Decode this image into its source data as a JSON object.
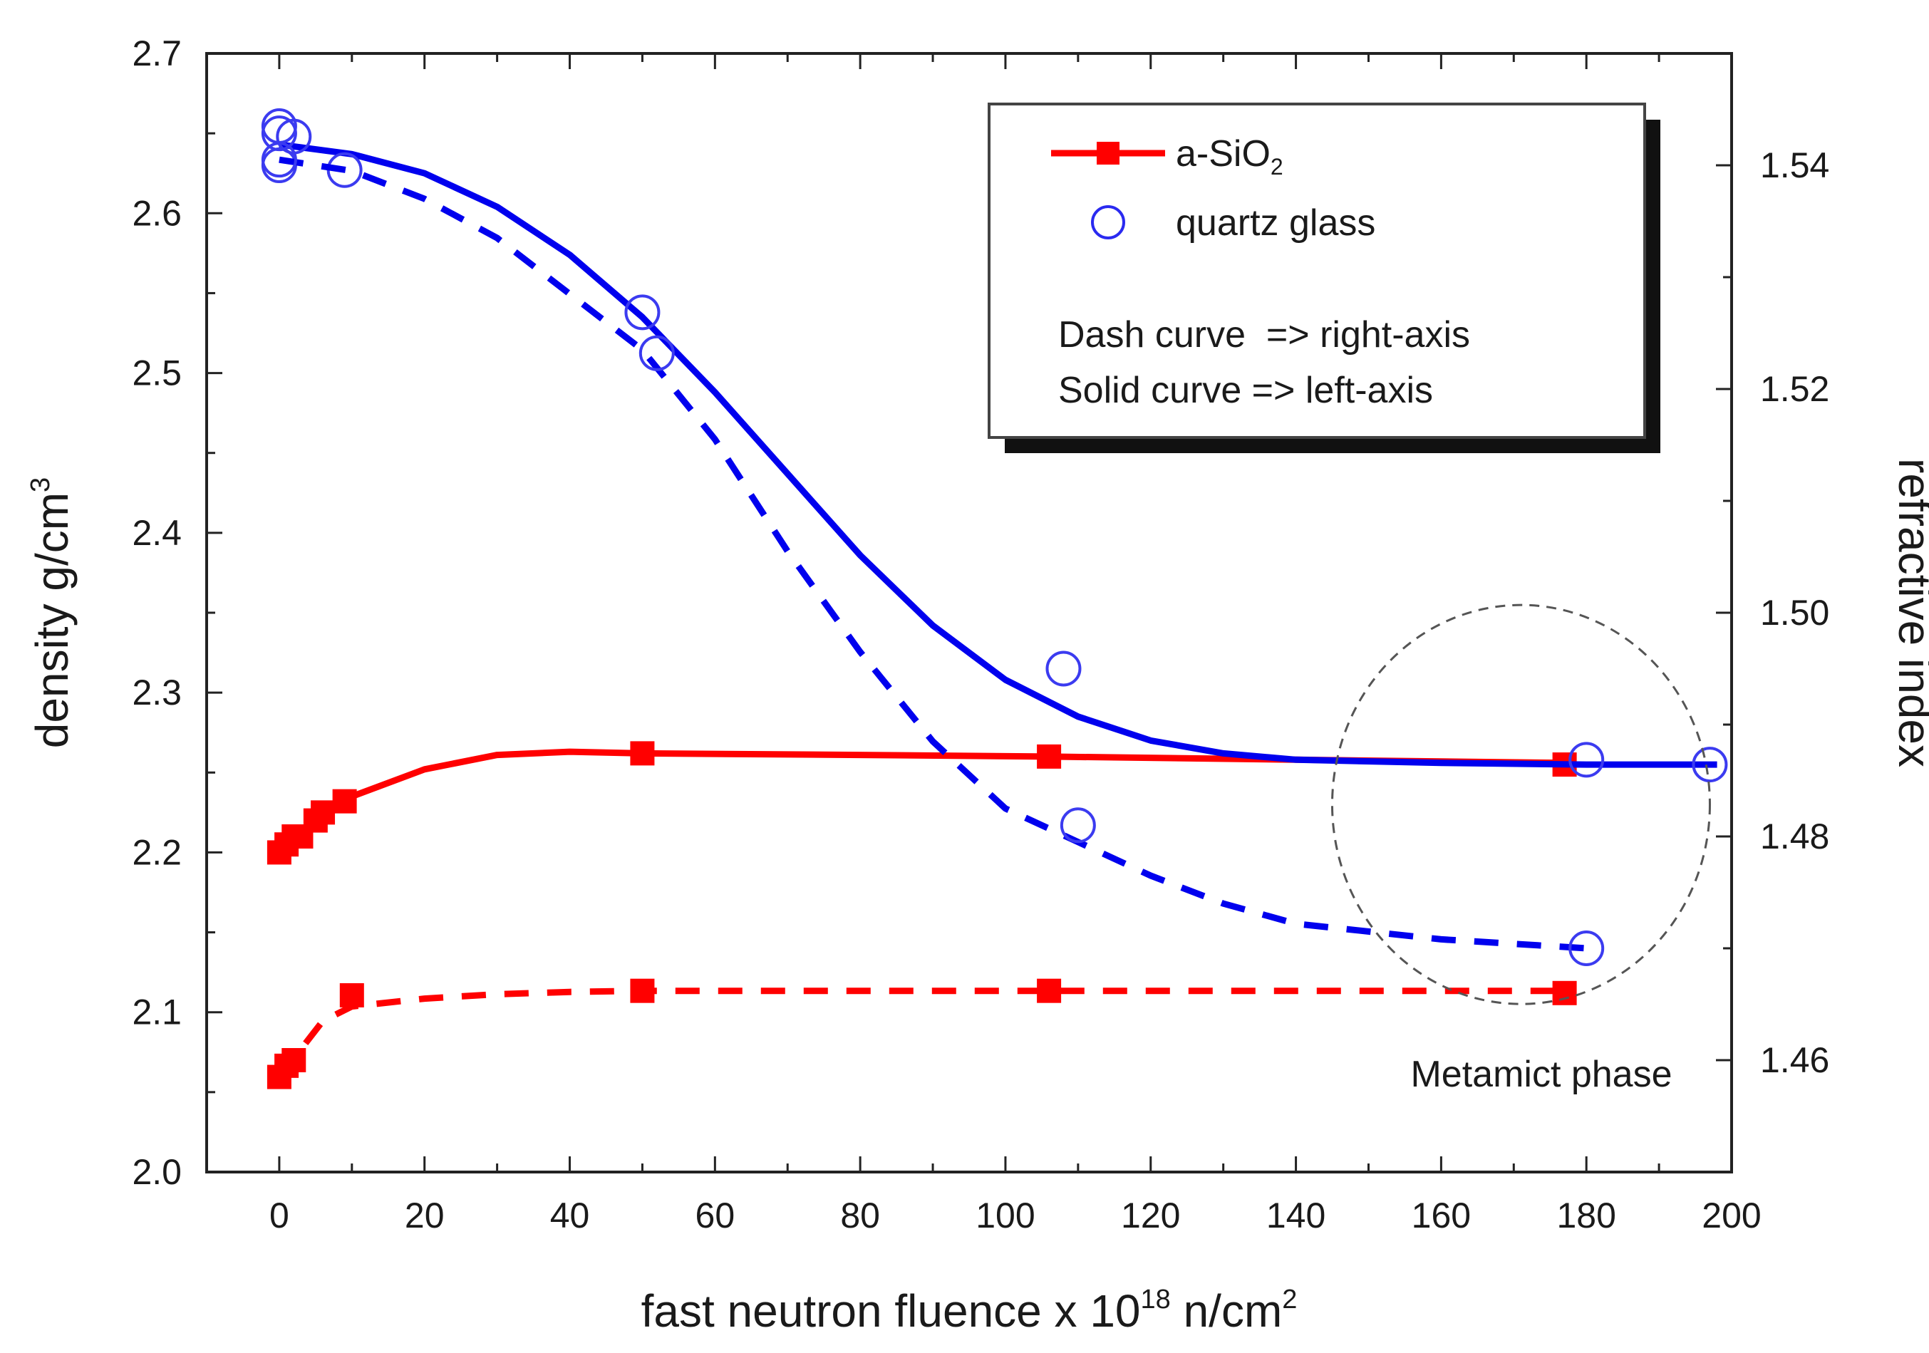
{
  "chart_data": {
    "type": "line",
    "title": "",
    "xlabel": {
      "pre": "fast neutron fluence x 10",
      "sup": "18",
      "mid": " n/cm",
      "sup2": "2"
    },
    "ylabel_left": {
      "pre": "density g/cm",
      "sup": "3"
    },
    "ylabel_right": "refractive index",
    "xlim": [
      -10,
      200
    ],
    "ylim_left": [
      2.0,
      2.7
    ],
    "ylim_right": [
      1.45,
      1.55
    ],
    "x_ticks": [
      {
        "value": 0,
        "label": "0"
      },
      {
        "value": 20,
        "label": "20"
      },
      {
        "value": 40,
        "label": "40"
      },
      {
        "value": 60,
        "label": "60"
      },
      {
        "value": 80,
        "label": "80"
      },
      {
        "value": 100,
        "label": "100"
      },
      {
        "value": 120,
        "label": "120"
      },
      {
        "value": 140,
        "label": "140"
      },
      {
        "value": 160,
        "label": "160"
      },
      {
        "value": 180,
        "label": "180"
      },
      {
        "value": 200,
        "label": "200"
      }
    ],
    "y_ticks_left": [
      {
        "value": 2.0,
        "label": "2.0"
      },
      {
        "value": 2.1,
        "label": "2.1"
      },
      {
        "value": 2.2,
        "label": "2.2"
      },
      {
        "value": 2.3,
        "label": "2.3"
      },
      {
        "value": 2.4,
        "label": "2.4"
      },
      {
        "value": 2.5,
        "label": "2.5"
      },
      {
        "value": 2.6,
        "label": "2.6"
      },
      {
        "value": 2.7,
        "label": "2.7"
      }
    ],
    "y_ticks_right": [
      {
        "value": 1.46,
        "label": "1.46"
      },
      {
        "value": 1.48,
        "label": "1.48"
      },
      {
        "value": 1.5,
        "label": "1.50"
      },
      {
        "value": 1.52,
        "label": "1.52"
      },
      {
        "value": 1.54,
        "label": "1.54"
      }
    ],
    "series": [
      {
        "name": "a-SiO2 density (left axis)",
        "axis": "left",
        "color": "#ff0000",
        "dash": false,
        "marker": "square",
        "points": [
          [
            0,
            2.2
          ],
          [
            1,
            2.205
          ],
          [
            2,
            2.21
          ],
          [
            3,
            2.21
          ],
          [
            5,
            2.22
          ],
          [
            6,
            2.225
          ],
          [
            9,
            2.232
          ],
          [
            50,
            2.262
          ],
          [
            106,
            2.26
          ],
          [
            177,
            2.255
          ]
        ],
        "curve": [
          [
            0,
            2.2
          ],
          [
            5,
            2.22
          ],
          [
            10,
            2.235
          ],
          [
            20,
            2.252
          ],
          [
            30,
            2.261
          ],
          [
            40,
            2.263
          ],
          [
            50,
            2.262
          ],
          [
            80,
            2.261
          ],
          [
            106,
            2.26
          ],
          [
            140,
            2.258
          ],
          [
            177,
            2.256
          ]
        ]
      },
      {
        "name": "a-SiO2 refractive index (right axis)",
        "axis": "right",
        "color": "#ff0000",
        "dash": true,
        "marker": "square",
        "points": [
          [
            0,
            1.4585
          ],
          [
            1,
            1.4595
          ],
          [
            2,
            1.46
          ],
          [
            10,
            1.4658
          ],
          [
            50,
            1.4662
          ],
          [
            106,
            1.4662
          ],
          [
            177,
            1.466
          ]
        ],
        "curve": [
          [
            0,
            1.4585
          ],
          [
            3,
            1.461
          ],
          [
            6,
            1.4635
          ],
          [
            10,
            1.4648
          ],
          [
            20,
            1.4655
          ],
          [
            30,
            1.4659
          ],
          [
            40,
            1.4661
          ],
          [
            50,
            1.4662
          ],
          [
            106,
            1.4662
          ],
          [
            177,
            1.4662
          ]
        ]
      },
      {
        "name": "quartz glass density (left axis)",
        "axis": "left",
        "color": "#0000ee",
        "dash": false,
        "marker": "circle",
        "points": [
          [
            0,
            2.65
          ],
          [
            2,
            2.648
          ],
          [
            0,
            2.63
          ],
          [
            9,
            2.627
          ],
          [
            50,
            2.538
          ],
          [
            108,
            2.315
          ],
          [
            180,
            2.258
          ],
          [
            197,
            2.255
          ]
        ],
        "curve": [
          [
            0,
            2.643
          ],
          [
            10,
            2.637
          ],
          [
            20,
            2.625
          ],
          [
            30,
            2.604
          ],
          [
            40,
            2.574
          ],
          [
            50,
            2.535
          ],
          [
            60,
            2.488
          ],
          [
            70,
            2.437
          ],
          [
            80,
            2.386
          ],
          [
            90,
            2.342
          ],
          [
            100,
            2.308
          ],
          [
            110,
            2.285
          ],
          [
            120,
            2.27
          ],
          [
            130,
            2.262
          ],
          [
            140,
            2.258
          ],
          [
            160,
            2.256
          ],
          [
            180,
            2.255
          ],
          [
            198,
            2.255
          ]
        ]
      },
      {
        "name": "quartz glass refractive index (right axis)",
        "axis": "right",
        "color": "#0000ee",
        "dash": true,
        "marker": "circle",
        "points": [
          [
            0,
            1.5435
          ],
          [
            0,
            1.5405
          ],
          [
            52,
            1.5232
          ],
          [
            110,
            1.481
          ],
          [
            180,
            1.47
          ]
        ],
        "curve": [
          [
            0,
            1.5405
          ],
          [
            10,
            1.5395
          ],
          [
            20,
            1.537
          ],
          [
            30,
            1.5335
          ],
          [
            40,
            1.5285
          ],
          [
            50,
            1.5235
          ],
          [
            60,
            1.5155
          ],
          [
            70,
            1.5055
          ],
          [
            80,
            1.4965
          ],
          [
            90,
            1.4885
          ],
          [
            100,
            1.4825
          ],
          [
            110,
            1.4795
          ],
          [
            120,
            1.4765
          ],
          [
            130,
            1.474
          ],
          [
            140,
            1.4722
          ],
          [
            160,
            1.4708
          ],
          [
            180,
            1.47
          ]
        ]
      }
    ],
    "legend": {
      "placement": "top-right",
      "entries": [
        {
          "label": "a-SiO",
          "sub": "2",
          "color": "#ff0000",
          "marker": "square"
        },
        {
          "label": "quartz glass",
          "color": "#0000ee",
          "marker": "circle"
        }
      ],
      "notes": [
        "Dash curve  => right-axis",
        "Solid curve => left-axis"
      ]
    },
    "annotations": [
      {
        "text": "Metamict phase",
        "region_center_x": 171,
        "region_center_y_left": 2.23
      }
    ]
  }
}
